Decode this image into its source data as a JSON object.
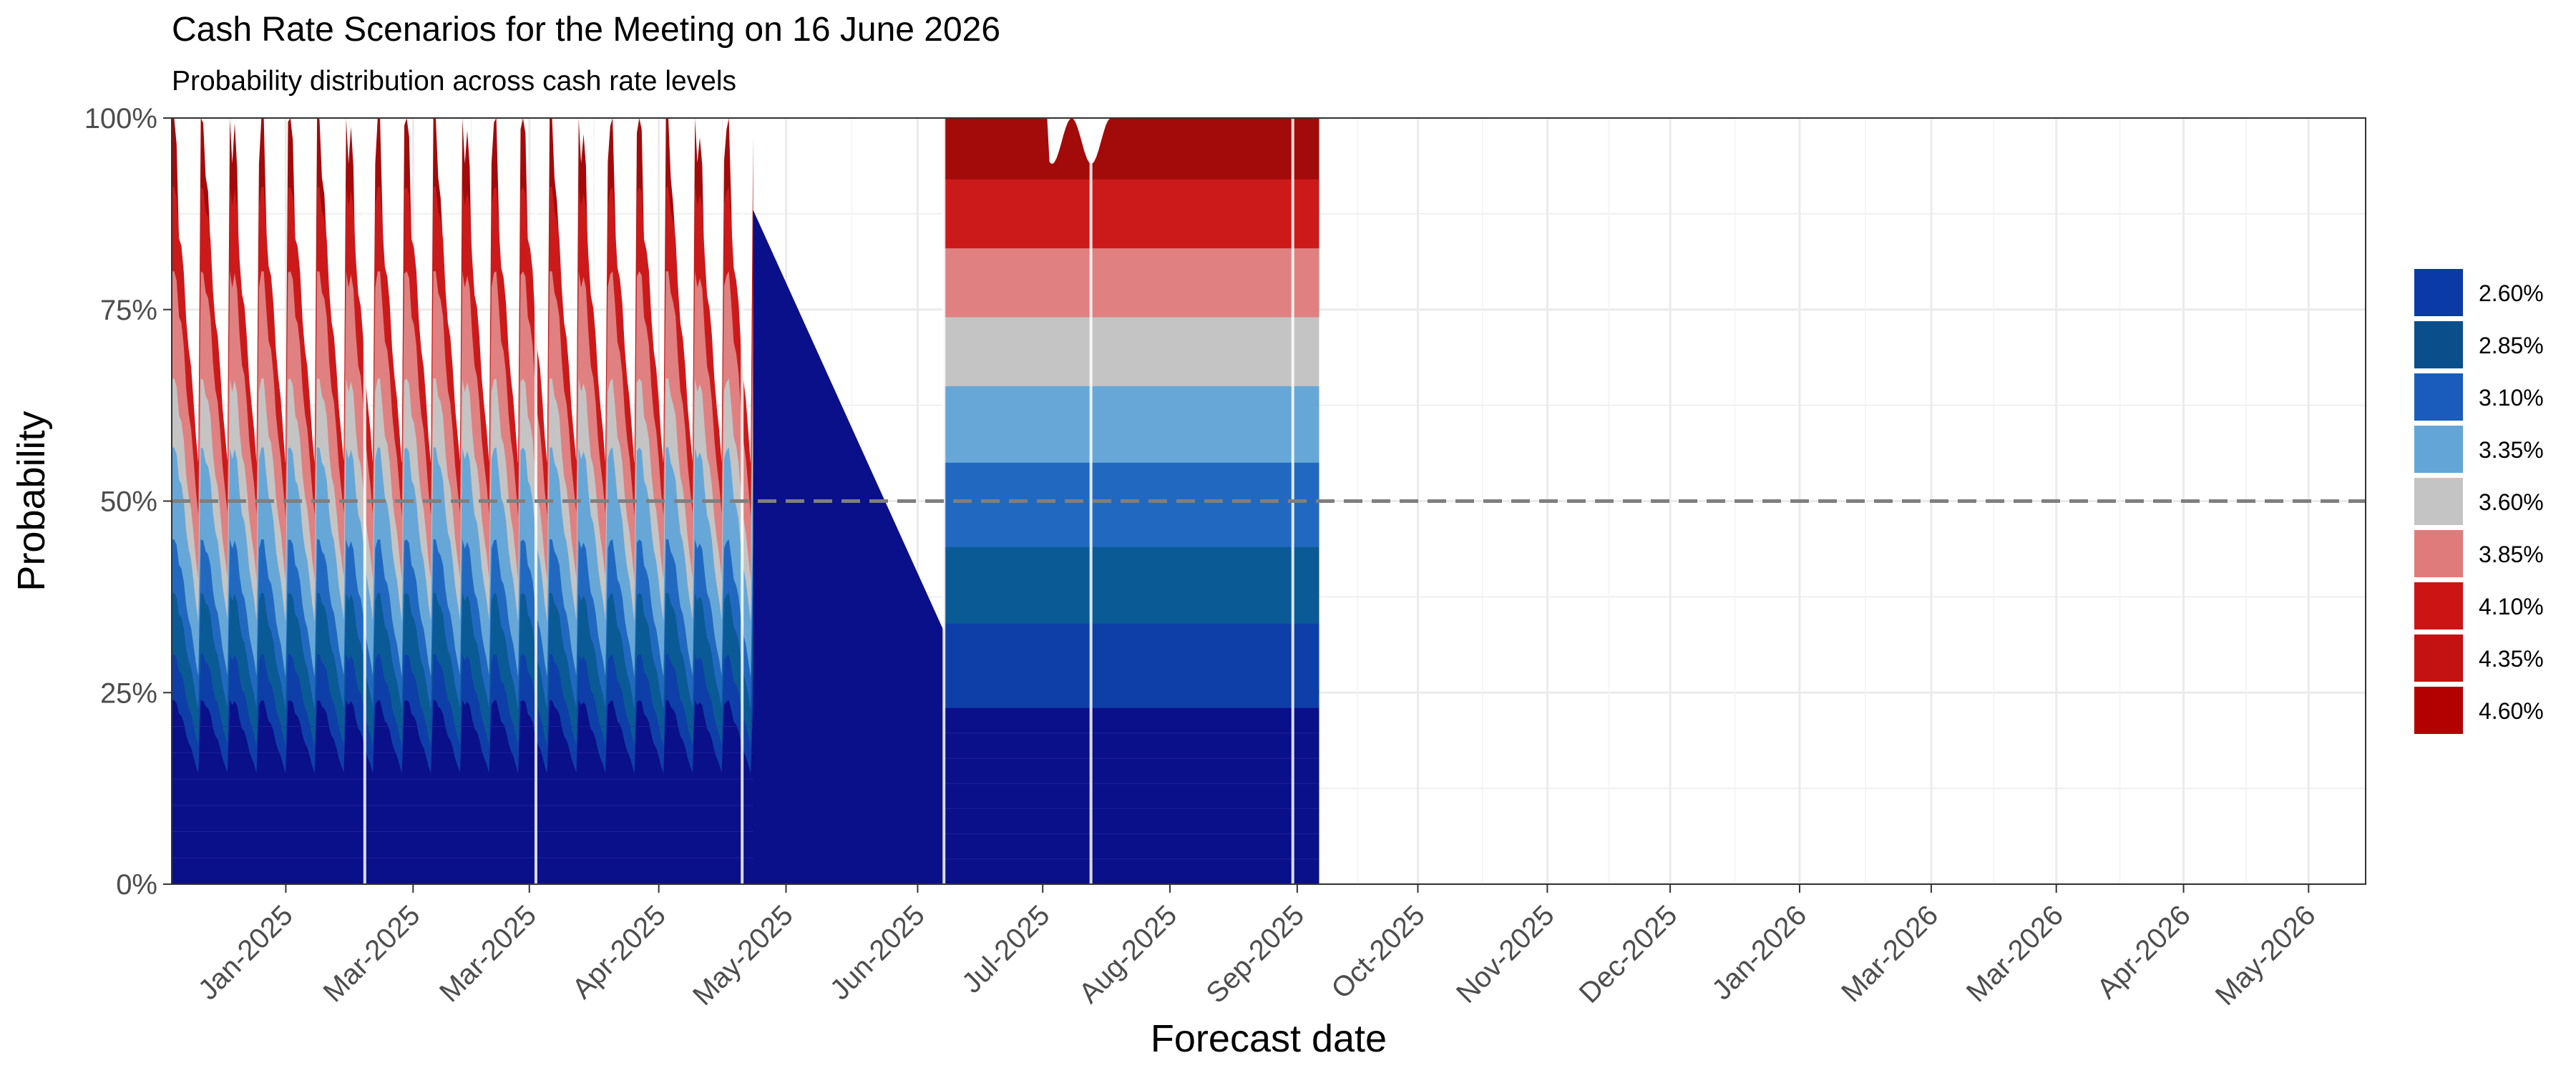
{
  "chart_data": {
    "type": "area",
    "title": "Cash Rate Scenarios for the Meeting on 16 June 2026",
    "subtitle": "Probability distribution across cash rate levels",
    "xlabel": "Forecast date",
    "ylabel": "Probability",
    "y_ticks": [
      "0%",
      "25%",
      "50%",
      "75%",
      "100%"
    ],
    "ylim": [
      0,
      100
    ],
    "x_ticks": [
      "Jan-2025",
      "Mar-2025",
      "Mar-2025",
      "Apr-2025",
      "May-2025",
      "Jun-2025",
      "Jul-2025",
      "Aug-2025",
      "Sep-2025",
      "Oct-2025",
      "Nov-2025",
      "Dec-2025",
      "Jan-2026",
      "Mar-2026",
      "Mar-2026",
      "Apr-2026",
      "May-2026"
    ],
    "reference_line": {
      "y": 50,
      "style": "dashed"
    },
    "legend_position": "right",
    "series": [
      {
        "name": "2.60%",
        "color": "#0a0f8a"
      },
      {
        "name": "2.85%",
        "color": "#0e3fa8"
      },
      {
        "name": "3.10%",
        "color": "#0a5a96"
      },
      {
        "name": "3.35%",
        "color": "#2169c0"
      },
      {
        "name": "3.60%",
        "color": "#66a7d8"
      },
      {
        "name": "3.85%",
        "color": "#c4c4c4"
      },
      {
        "name": "4.10%",
        "color": "#e08080"
      },
      {
        "name": "4.35%",
        "color": "#cc1a1a"
      },
      {
        "name": "4.60%",
        "color": "#a30a0a"
      }
    ],
    "legend": [
      {
        "label": "2.60%",
        "color": "#0a3aa8"
      },
      {
        "label": "2.85%",
        "color": "#0a4f8c"
      },
      {
        "label": "3.10%",
        "color": "#1a5cbb"
      },
      {
        "label": "3.35%",
        "color": "#64a5d8"
      },
      {
        "label": "3.60%",
        "color": "#c4c4c4"
      },
      {
        "label": "3.85%",
        "color": "#e07b7b"
      },
      {
        "label": "4.10%",
        "color": "#cc1414"
      },
      {
        "label": "4.35%",
        "color": "#c41212"
      },
      {
        "label": "4.60%",
        "color": "#b30000"
      }
    ],
    "early_segment": {
      "date_range": [
        "Dec-2024",
        "May-2025"
      ],
      "cumulative_pct": [
        24,
        30,
        38,
        45,
        57,
        66,
        80,
        91,
        100
      ]
    },
    "transition_segment": {
      "date_range": [
        "May-2025",
        "Jun-2025"
      ],
      "top_pct_start": 88,
      "top_pct_end": 33
    },
    "late_segment": {
      "date_range": [
        "Jun-2025",
        "Sep-2025"
      ],
      "cumulative_pct": [
        23,
        34,
        44,
        55,
        65,
        74,
        83,
        92,
        100
      ]
    },
    "vertical_markers": [
      "Feb-2025",
      "Mar-2025",
      "May-2025",
      "Jun-2025",
      "Jul-2025",
      "Sep-2025"
    ]
  }
}
